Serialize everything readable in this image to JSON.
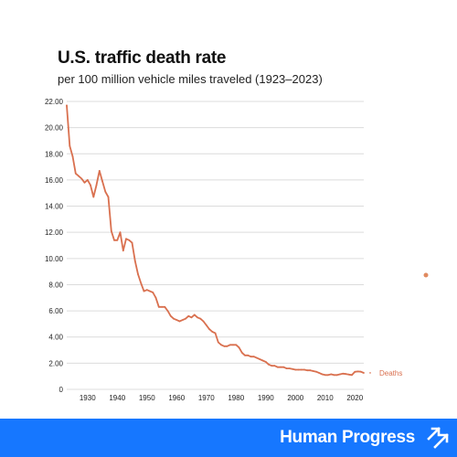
{
  "title": "U.S. traffic death rate",
  "subtitle": "per 100 million vehicle miles traveled (1923–2023)",
  "brand": {
    "name": "Human Progress",
    "logo_icon": "upward-arrows-logo-icon"
  },
  "colors": {
    "series": "#d9704f",
    "grid": "#dcdcdc",
    "footer": "#1677ff",
    "stray_dot": "#e08a60"
  },
  "chart_data": {
    "type": "line",
    "title": "U.S. traffic death rate",
    "subtitle": "per 100 million vehicle miles traveled (1923–2023)",
    "xlim": [
      1923,
      2023
    ],
    "ylim": [
      0,
      22
    ],
    "grid": true,
    "x_ticks": [
      "1930",
      "1940",
      "1950",
      "1960",
      "1970",
      "1980",
      "1990",
      "2000",
      "2010",
      "2020"
    ],
    "y_ticks": [
      "0",
      "2.00",
      "4.00",
      "6.00",
      "8.00",
      "10.00",
      "12.00",
      "14.00",
      "16.00",
      "18.00",
      "20.00",
      "22.00"
    ],
    "series": [
      {
        "name": "Deaths",
        "x": [
          1923,
          1924,
          1925,
          1926,
          1927,
          1928,
          1929,
          1930,
          1931,
          1932,
          1933,
          1934,
          1935,
          1936,
          1937,
          1938,
          1939,
          1940,
          1941,
          1942,
          1943,
          1944,
          1945,
          1946,
          1947,
          1948,
          1949,
          1950,
          1951,
          1952,
          1953,
          1954,
          1955,
          1956,
          1957,
          1958,
          1959,
          1960,
          1961,
          1962,
          1963,
          1964,
          1965,
          1966,
          1967,
          1968,
          1969,
          1970,
          1971,
          1972,
          1973,
          1974,
          1975,
          1976,
          1977,
          1978,
          1979,
          1980,
          1981,
          1982,
          1983,
          1984,
          1985,
          1986,
          1987,
          1988,
          1989,
          1990,
          1991,
          1992,
          1993,
          1994,
          1995,
          1996,
          1997,
          1998,
          1999,
          2000,
          2001,
          2002,
          2003,
          2004,
          2005,
          2006,
          2007,
          2008,
          2009,
          2010,
          2011,
          2012,
          2013,
          2014,
          2015,
          2016,
          2017,
          2018,
          2019,
          2020,
          2021,
          2022,
          2023
        ],
        "values": [
          21.7,
          18.6,
          17.8,
          16.5,
          16.3,
          16.1,
          15.8,
          16.0,
          15.6,
          14.7,
          15.6,
          16.7,
          15.9,
          15.1,
          14.7,
          12.1,
          11.4,
          11.4,
          12.0,
          10.6,
          11.5,
          11.4,
          11.2,
          9.8,
          8.8,
          8.1,
          7.5,
          7.6,
          7.5,
          7.4,
          7.0,
          6.3,
          6.3,
          6.3,
          6.0,
          5.6,
          5.4,
          5.3,
          5.2,
          5.3,
          5.4,
          5.6,
          5.5,
          5.7,
          5.5,
          5.4,
          5.2,
          4.9,
          4.6,
          4.4,
          4.3,
          3.6,
          3.4,
          3.3,
          3.3,
          3.4,
          3.4,
          3.4,
          3.2,
          2.8,
          2.6,
          2.6,
          2.5,
          2.5,
          2.4,
          2.3,
          2.2,
          2.1,
          1.9,
          1.8,
          1.8,
          1.7,
          1.7,
          1.7,
          1.6,
          1.6,
          1.55,
          1.5,
          1.5,
          1.5,
          1.5,
          1.45,
          1.45,
          1.4,
          1.35,
          1.25,
          1.15,
          1.1,
          1.1,
          1.15,
          1.1,
          1.1,
          1.15,
          1.2,
          1.17,
          1.13,
          1.1,
          1.34,
          1.37,
          1.35,
          1.26
        ]
      }
    ]
  }
}
